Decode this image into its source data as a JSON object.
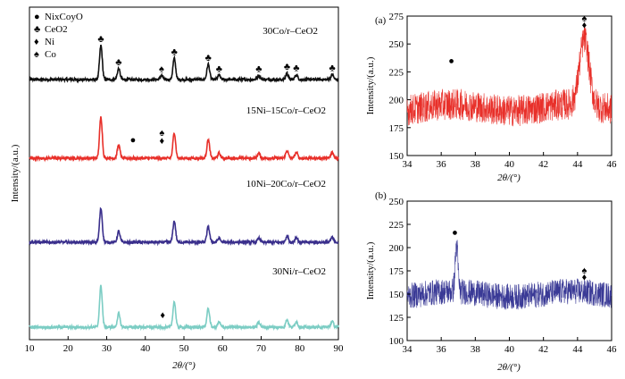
{
  "chart_data": [
    {
      "type": "line",
      "xlabel": "2θ/(°)",
      "ylabel": "Intensity/(a.u.)",
      "xlim": [
        10,
        90
      ],
      "xticks": [
        10,
        20,
        30,
        40,
        50,
        60,
        70,
        80,
        90
      ],
      "legend": [
        {
          "marker": "●",
          "label": "NixCoyO"
        },
        {
          "marker": "♣",
          "label": "CeO2"
        },
        {
          "marker": "♦",
          "label": "Ni"
        },
        {
          "marker": "♠",
          "label": "Co"
        }
      ],
      "series": [
        {
          "name": "30Co/r–CeO2",
          "color": "#111111",
          "peaks_2theta": [
            28.5,
            33.1,
            47.5,
            56.3,
            59.1,
            69.4,
            76.7,
            79.1,
            88.4
          ],
          "annotations": [
            {
              "x": 28.5,
              "marker": "♣"
            },
            {
              "x": 33.1,
              "marker": "♣"
            },
            {
              "x": 44.2,
              "marker": "♠"
            },
            {
              "x": 47.5,
              "marker": "♣"
            },
            {
              "x": 56.3,
              "marker": "♣"
            },
            {
              "x": 59.1,
              "marker": "♣"
            },
            {
              "x": 69.4,
              "marker": "♣"
            },
            {
              "x": 76.7,
              "marker": "♣"
            },
            {
              "x": 79.1,
              "marker": "♣"
            },
            {
              "x": 88.4,
              "marker": "♣"
            }
          ]
        },
        {
          "name": "15Ni–15Co/r–CeO2",
          "color": "#e8302a",
          "peaks_2theta": [
            28.5,
            33.1,
            47.5,
            56.3,
            59.1,
            69.4,
            76.7,
            79.1,
            88.4
          ],
          "annotations": [
            {
              "x": 36.8,
              "marker": "●"
            },
            {
              "x": 44.3,
              "marker": "♠"
            },
            {
              "x": 44.3,
              "marker": "♦"
            }
          ]
        },
        {
          "name": "10Ni–20Co/r–CeO2",
          "color": "#3a2f8c",
          "peaks_2theta": [
            28.5,
            33.1,
            47.5,
            56.3,
            59.1,
            69.4,
            76.7,
            79.1,
            88.4
          ],
          "annotations": []
        },
        {
          "name": "30Ni/r–CeO2",
          "color": "#7ccdc4",
          "peaks_2theta": [
            28.5,
            33.1,
            47.5,
            56.3,
            59.1,
            69.4,
            76.7,
            79.1,
            88.4
          ],
          "annotations": [
            {
              "x": 44.5,
              "marker": "♦"
            }
          ]
        }
      ]
    },
    {
      "type": "line",
      "panel": "(a)",
      "xlabel": "2θ/(°)",
      "ylabel": "Intensity/(a.u.)",
      "xlim": [
        34,
        46
      ],
      "ylim": [
        150,
        275
      ],
      "xticks": [
        34,
        36,
        38,
        40,
        42,
        44,
        46
      ],
      "yticks": [
        150,
        175,
        200,
        225,
        250,
        275
      ],
      "series": [
        {
          "color": "#e8302a",
          "baseline": 193,
          "noise": 14,
          "peaks": [
            {
              "x": 44.4,
              "y": 252,
              "width": 0.28
            }
          ]
        }
      ],
      "annotations": [
        {
          "x": 36.6,
          "y": 232,
          "marker": "●"
        },
        {
          "x": 44.4,
          "y": 270,
          "marker": "♠"
        },
        {
          "x": 44.4,
          "y": 264,
          "marker": "♦"
        }
      ]
    },
    {
      "type": "line",
      "panel": "(b)",
      "xlabel": "2θ/(°)",
      "ylabel": "Intensity/(a.u.)",
      "xlim": [
        34,
        46
      ],
      "ylim": [
        100,
        250
      ],
      "xticks": [
        34,
        36,
        38,
        40,
        42,
        44,
        46
      ],
      "yticks": [
        100,
        125,
        150,
        175,
        200,
        225,
        250
      ],
      "series": [
        {
          "color": "#3a3a96",
          "baseline": 150,
          "noise": 14,
          "peaks": [
            {
              "x": 36.9,
              "y": 200,
              "width": 0.08
            }
          ]
        }
      ],
      "annotations": [
        {
          "x": 36.8,
          "y": 213,
          "marker": "●"
        },
        {
          "x": 44.4,
          "y": 172,
          "marker": "♠"
        },
        {
          "x": 44.4,
          "y": 165,
          "marker": "♦"
        }
      ]
    }
  ]
}
